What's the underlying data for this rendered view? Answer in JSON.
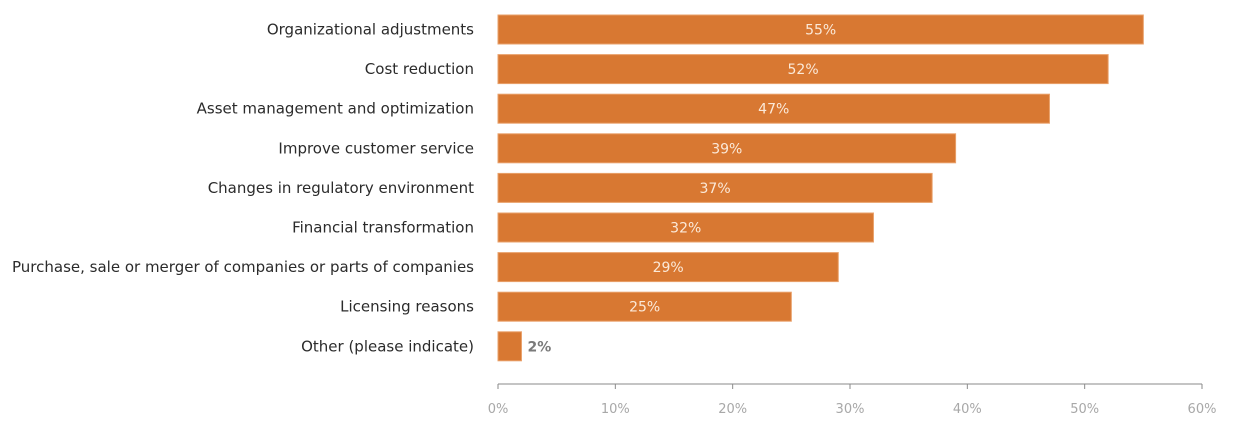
{
  "chart_data": {
    "type": "bar",
    "orientation": "horizontal",
    "title": "",
    "xlabel": "",
    "ylabel": "",
    "categories": [
      "Organizational adjustments",
      "Cost reduction",
      "Asset management and optimization",
      "Improve customer service",
      "Changes in regulatory environment",
      "Financial transformation",
      "Purchase, sale or merger of companies or parts of companies",
      "Licensing reasons",
      "Other (please indicate)"
    ],
    "values": [
      55,
      52,
      47,
      39,
      37,
      32,
      29,
      25,
      2
    ],
    "value_labels": [
      "55%",
      "52%",
      "47%",
      "39%",
      "37%",
      "32%",
      "29%",
      "25%",
      "2%"
    ],
    "xlim": [
      0,
      60
    ],
    "x_ticks": [
      0,
      10,
      20,
      30,
      40,
      50,
      60
    ],
    "x_tick_labels": [
      "0%",
      "10%",
      "20%",
      "30%",
      "40%",
      "50%",
      "60%"
    ],
    "grid": false,
    "legend": "none",
    "bar_color": "#d87832"
  }
}
